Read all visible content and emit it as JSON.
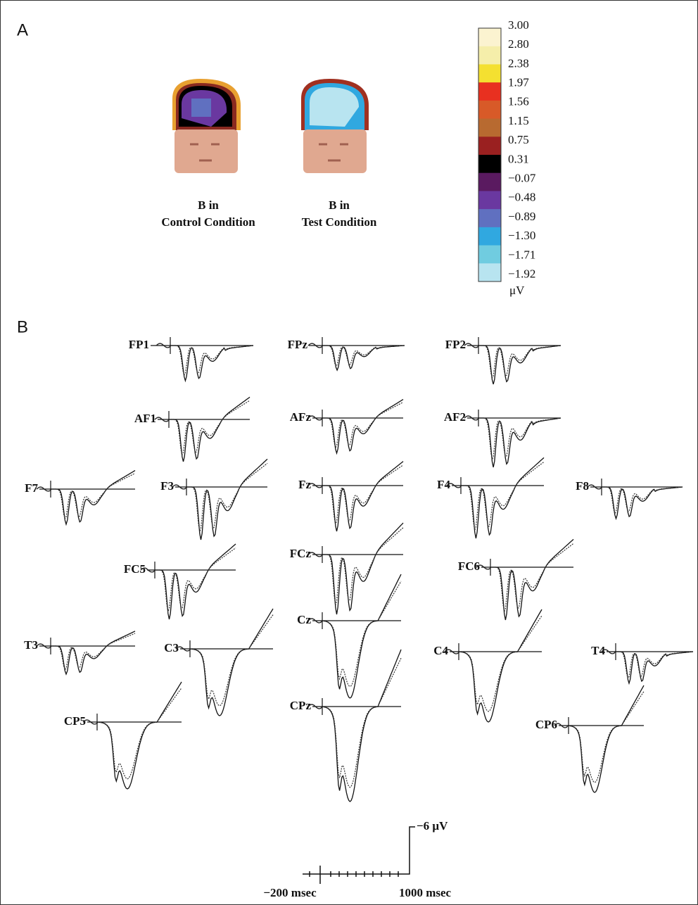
{
  "panel_a": {
    "label": "A",
    "maps": [
      {
        "line1": "B in",
        "line2": "Control Condition"
      },
      {
        "line1": "B in",
        "line2": "Test Condition"
      }
    ],
    "colorbar": {
      "labels": [
        "3.00",
        "2.80",
        "2.38",
        "1.97",
        "1.56",
        "1.15",
        "0.75",
        "0.31",
        "−0.07",
        "−0.48",
        "−0.89",
        "−1.30",
        "−1.71",
        "−1.92"
      ],
      "unit": "μV"
    }
  },
  "panel_b": {
    "label": "B",
    "electrodes": [
      "FP1",
      "FPz",
      "FP2",
      "AF1",
      "AFz",
      "AF2",
      "F7",
      "F3",
      "Fz",
      "F4",
      "F8",
      "FC5",
      "FCz",
      "FC6",
      "Cz",
      "T3",
      "C3",
      "C4",
      "T4",
      "CP5",
      "CPz",
      "CP6"
    ],
    "scale": {
      "amplitude": "−6 μV",
      "time_start": "−200 msec",
      "time_end": "1000 msec"
    }
  }
}
